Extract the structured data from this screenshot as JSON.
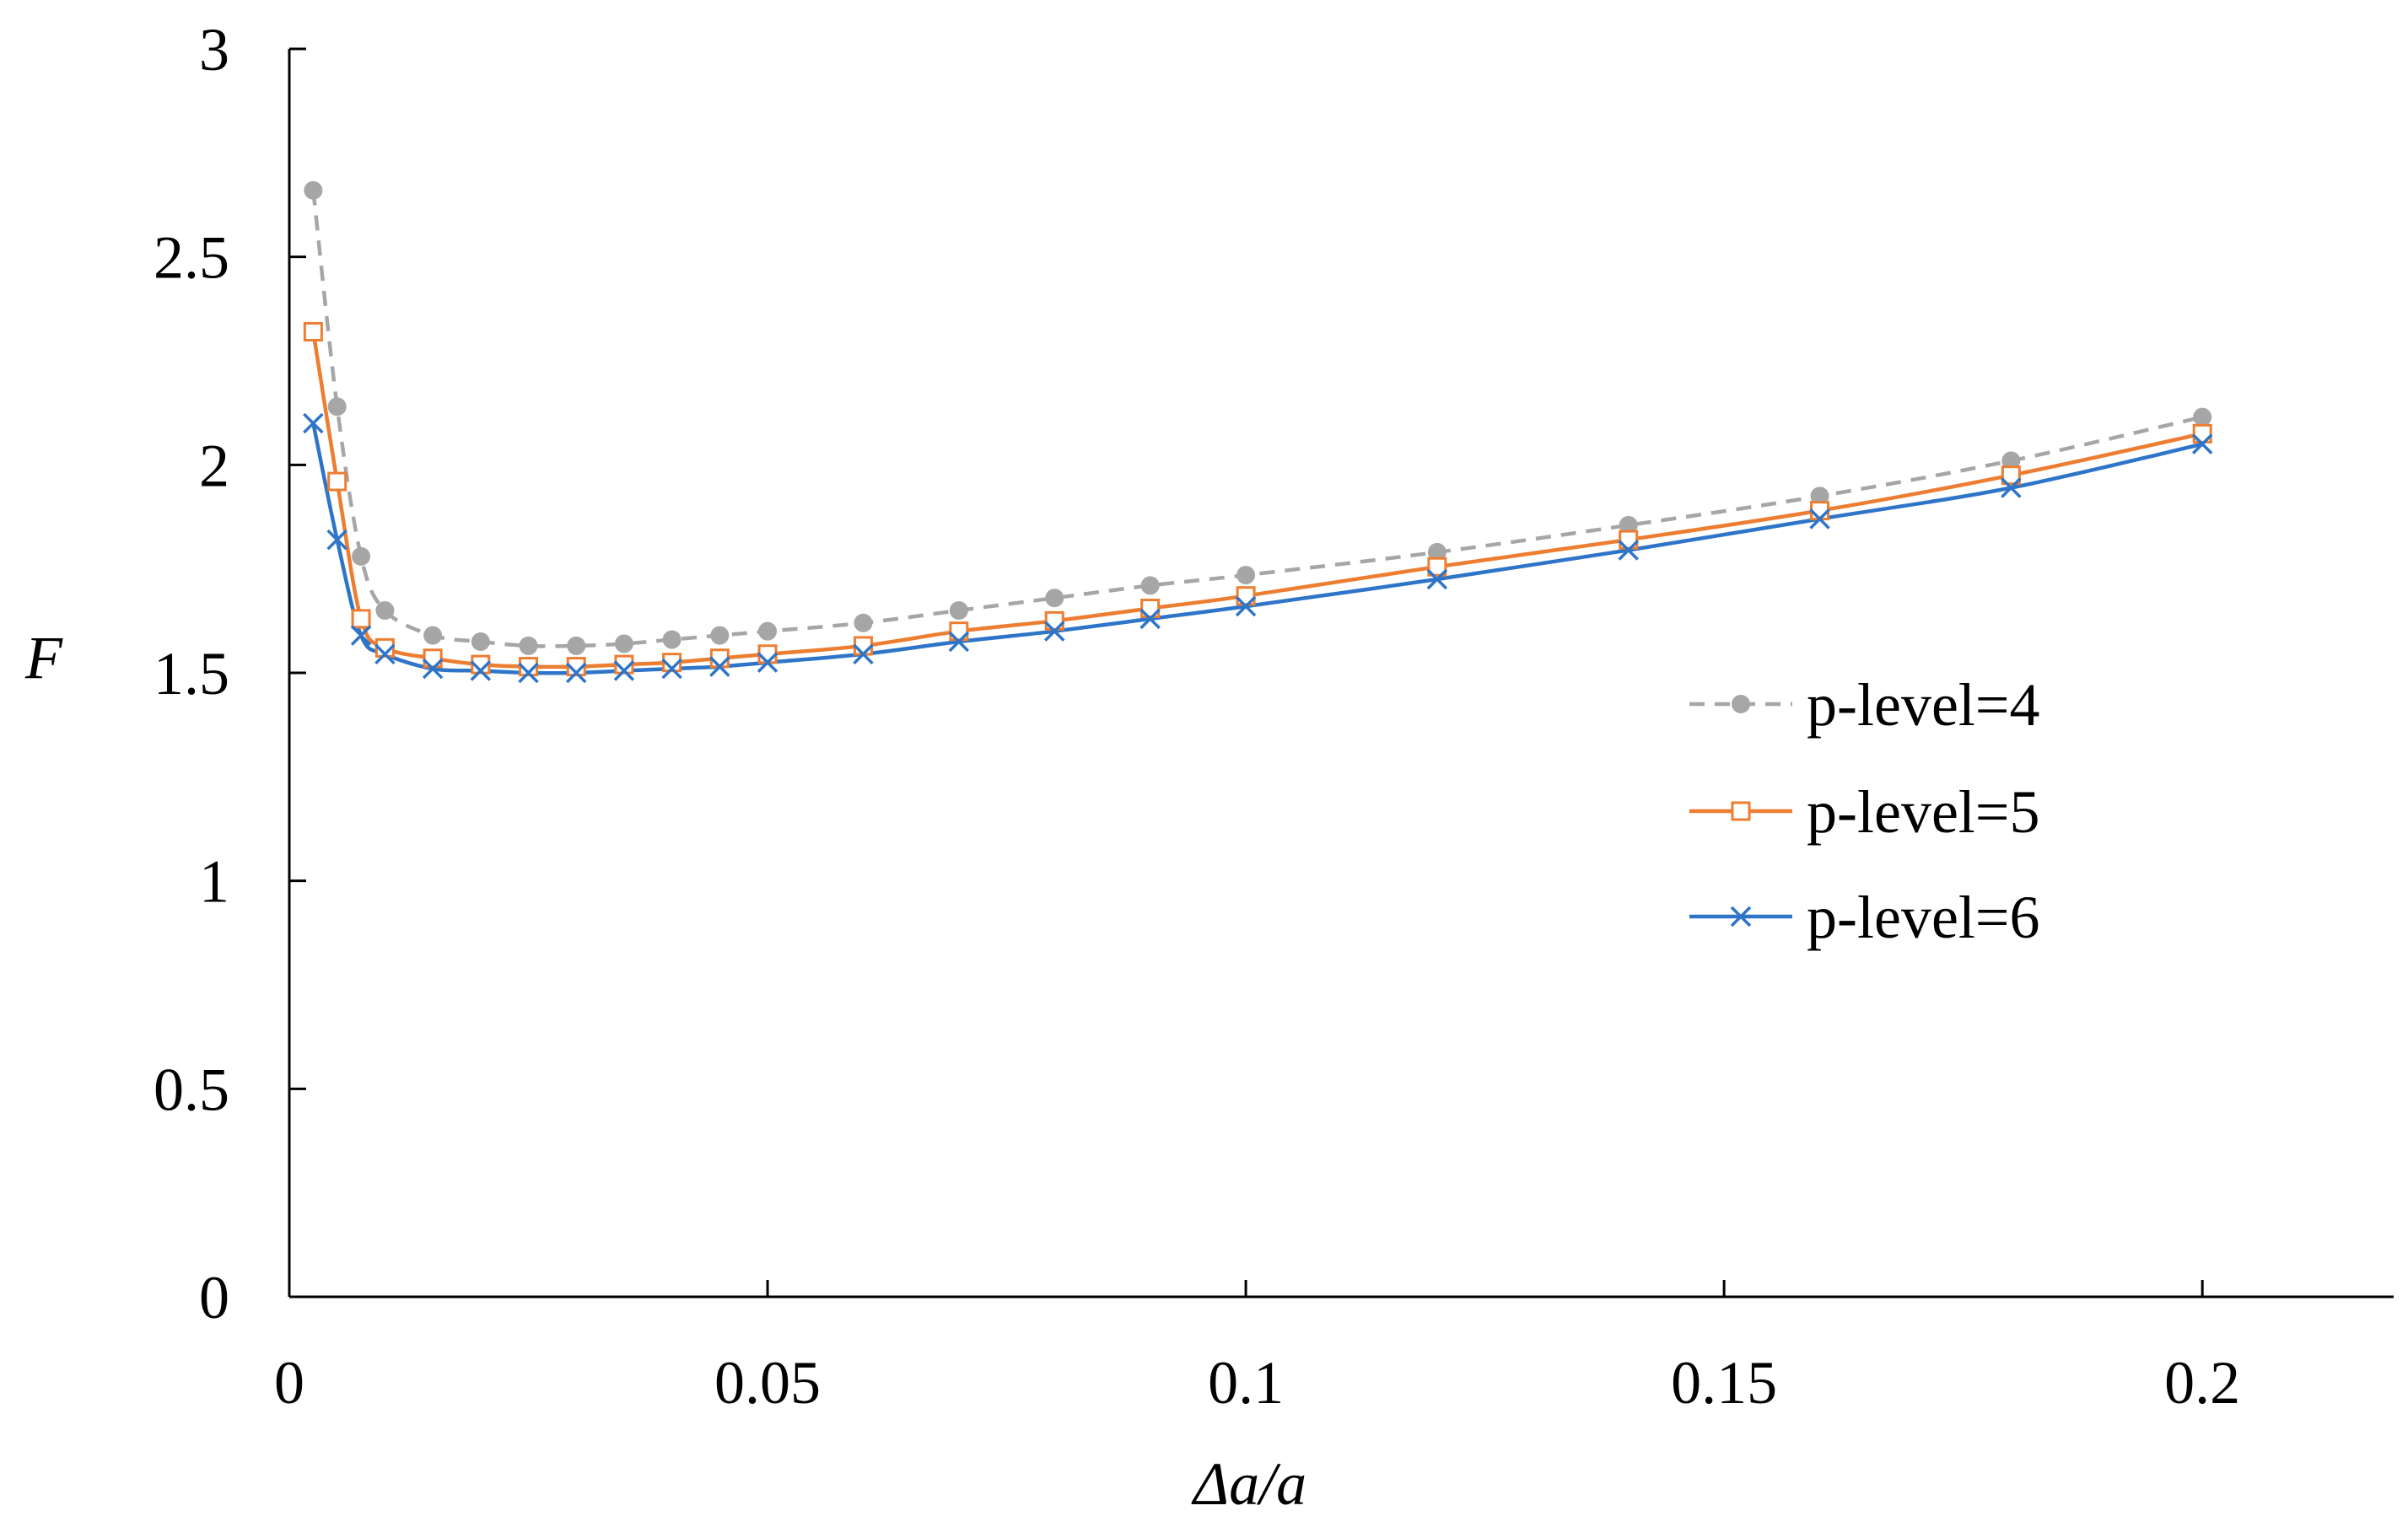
{
  "chart_data": {
    "type": "line",
    "title": "",
    "xlabel": "Δa/a",
    "ylabel": "F",
    "xlim": [
      0,
      0.22
    ],
    "ylim": [
      0,
      3
    ],
    "x_ticks": [
      0,
      0.05,
      0.1,
      0.15,
      0.2
    ],
    "x_tick_labels": [
      "0",
      "0.05",
      "0.1",
      "0.15",
      "0.2"
    ],
    "y_ticks": [
      0,
      0.5,
      1,
      1.5,
      2,
      2.5,
      3
    ],
    "y_tick_labels": [
      "0",
      "0.5",
      "1",
      "1.5",
      "2",
      "2.5",
      "3"
    ],
    "grid": false,
    "legend_position": "right",
    "x": [
      0.0025,
      0.005,
      0.0075,
      0.01,
      0.015,
      0.02,
      0.025,
      0.03,
      0.035,
      0.04,
      0.045,
      0.05,
      0.06,
      0.07,
      0.08,
      0.09,
      0.1,
      0.12,
      0.14,
      0.16,
      0.18,
      0.2
    ],
    "series": [
      {
        "name": "p-level=4",
        "color": "#A6A6A6",
        "line_style": "dashed",
        "marker": "filled-circle",
        "values": [
          2.66,
          2.14,
          1.78,
          1.65,
          1.59,
          1.575,
          1.565,
          1.565,
          1.57,
          1.58,
          1.59,
          1.6,
          1.62,
          1.65,
          1.68,
          1.71,
          1.735,
          1.79,
          1.855,
          1.925,
          2.01,
          2.115
        ]
      },
      {
        "name": "p-level=5",
        "color": "#ED7D31",
        "line_style": "solid",
        "marker": "open-square",
        "values": [
          2.32,
          1.96,
          1.63,
          1.56,
          1.535,
          1.52,
          1.515,
          1.515,
          1.52,
          1.525,
          1.535,
          1.545,
          1.565,
          1.6,
          1.625,
          1.655,
          1.685,
          1.755,
          1.82,
          1.89,
          1.975,
          2.075
        ]
      },
      {
        "name": "p-level=6",
        "color": "#2E75C9",
        "line_style": "solid",
        "marker": "x-cross",
        "values": [
          2.1,
          1.82,
          1.59,
          1.545,
          1.51,
          1.505,
          1.5,
          1.5,
          1.505,
          1.51,
          1.515,
          1.525,
          1.545,
          1.575,
          1.6,
          1.63,
          1.66,
          1.725,
          1.795,
          1.87,
          1.945,
          2.05
        ]
      }
    ]
  }
}
